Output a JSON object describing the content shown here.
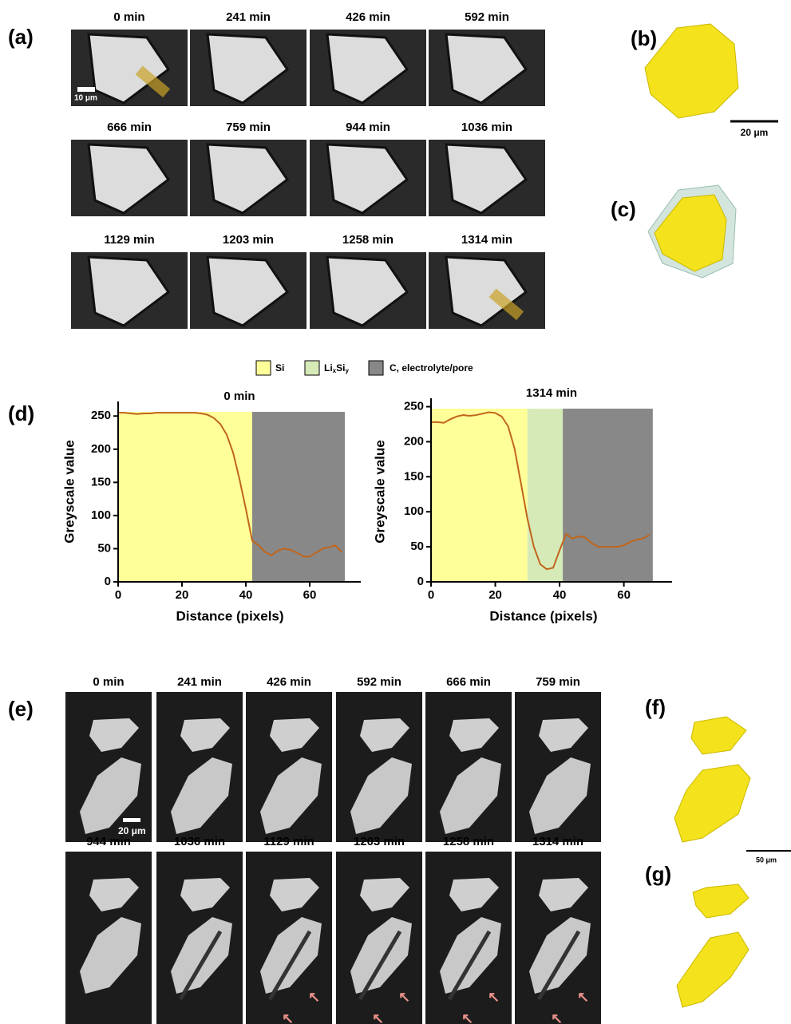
{
  "panel_a": {
    "label": "(a)",
    "times": [
      "0 min",
      "241 min",
      "426 min",
      "592 min",
      "666 min",
      "759 min",
      "944 min",
      "1036 min",
      "1129 min",
      "1203 min",
      "1258 min",
      "1314 min"
    ],
    "scale_bar": "10 μm"
  },
  "panel_b": {
    "label": "(b)",
    "scale_bar": "20 μm"
  },
  "panel_c": {
    "label": "(c)"
  },
  "panel_d": {
    "label": "(d)",
    "legend": [
      {
        "name": "Si",
        "color": "#ffff99"
      },
      {
        "name": [
          "Li",
          "x",
          "Si",
          "y"
        ],
        "color": "#d6eab8"
      },
      {
        "name": "C, electrolyte/pore",
        "color": "#888888"
      }
    ]
  },
  "chart_data": [
    {
      "type": "line",
      "title": "0 min",
      "x_label": "Distance (pixels)",
      "y_label": "Greyscale value",
      "x": [
        0,
        2,
        4,
        6,
        8,
        10,
        12,
        14,
        16,
        18,
        20,
        22,
        24,
        26,
        28,
        30,
        32,
        34,
        36,
        38,
        40,
        42,
        44,
        46,
        48,
        50,
        52,
        54,
        56,
        58,
        60,
        62,
        64,
        66,
        68,
        70
      ],
      "values": [
        255,
        255,
        254,
        253,
        254,
        254,
        255,
        255,
        255,
        255,
        255,
        255,
        255,
        254,
        252,
        247,
        238,
        222,
        195,
        155,
        110,
        62,
        55,
        45,
        40,
        47,
        50,
        48,
        44,
        38,
        38,
        44,
        50,
        52,
        55,
        45
      ],
      "color": "#c0651a",
      "regions": [
        {
          "color": "#ffff99",
          "range": [
            0,
            42
          ]
        },
        {
          "color": "#888888",
          "range": [
            42,
            71
          ]
        }
      ],
      "xlim": [
        0,
        76
      ],
      "ylim": [
        0,
        272
      ],
      "xticks": [
        0,
        20,
        40,
        60
      ],
      "yticks": [
        0,
        50,
        100,
        150,
        200,
        250
      ]
    },
    {
      "type": "line",
      "title": "1314 min",
      "x_label": "Distance (pixels)",
      "y_label": "Greyscale value",
      "x": [
        0,
        2,
        4,
        6,
        8,
        10,
        12,
        14,
        16,
        18,
        20,
        22,
        24,
        26,
        28,
        30,
        32,
        34,
        36,
        38,
        40,
        42,
        44,
        46,
        48,
        50,
        52,
        54,
        56,
        58,
        60,
        62,
        64,
        66,
        68
      ],
      "values": [
        228,
        228,
        227,
        232,
        236,
        238,
        237,
        238,
        240,
        242,
        241,
        236,
        222,
        190,
        140,
        90,
        50,
        25,
        18,
        20,
        45,
        68,
        62,
        65,
        63,
        55,
        50,
        50,
        50,
        50,
        52,
        57,
        60,
        62,
        67
      ],
      "color": "#c0651a",
      "regions": [
        {
          "color": "#ffff99",
          "range": [
            0,
            30
          ]
        },
        {
          "color": "#d6eab8",
          "range": [
            30,
            41
          ]
        },
        {
          "color": "#888888",
          "range": [
            41,
            69
          ]
        }
      ],
      "xlim": [
        0,
        75
      ],
      "ylim": [
        0,
        262
      ],
      "xticks": [
        0,
        20,
        40,
        60
      ],
      "yticks": [
        0,
        50,
        100,
        150,
        200,
        250
      ]
    }
  ],
  "panel_e": {
    "label": "(e)",
    "times": [
      "0 min",
      "241 min",
      "426 min",
      "592 min",
      "666 min",
      "759 min",
      "944 min",
      "1036 min",
      "1129 min",
      "1203 min",
      "1258 min",
      "1314 min"
    ],
    "scale_bar": "20 μm"
  },
  "panel_f": {
    "label": "(f)",
    "scale_bar": "50 μm"
  },
  "panel_g": {
    "label": "(g)"
  }
}
